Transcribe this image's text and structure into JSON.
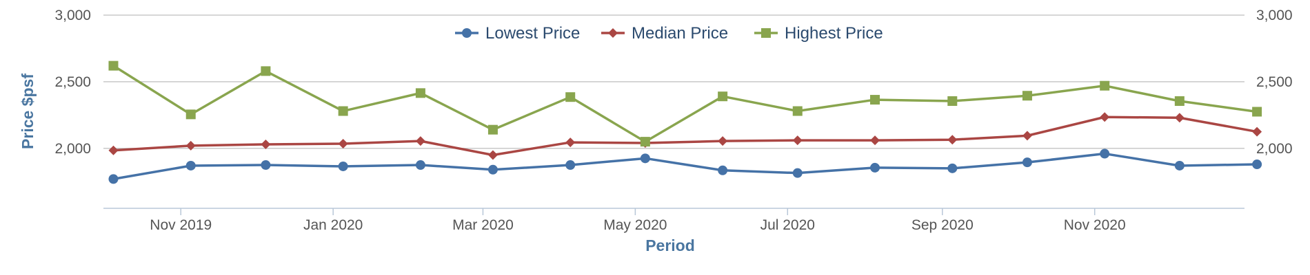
{
  "chart_data": {
    "type": "line",
    "title": "",
    "xlabel": "Period",
    "ylabel": "Price $psf",
    "ylim": [
      1550,
      3000
    ],
    "yticks": [
      2000,
      2500,
      3000
    ],
    "ytick_labels": [
      "2,000",
      "2,500",
      "3,000"
    ],
    "xlim": [
      "2019-10-01",
      "2020-12-31"
    ],
    "xticks": [
      "2019-11-01",
      "2020-01-01",
      "2020-03-01",
      "2020-05-01",
      "2020-07-01",
      "2020-09-01",
      "2020-11-01"
    ],
    "xtick_labels": [
      "Nov 2019",
      "Jan 2020",
      "Mar 2020",
      "May 2020",
      "Jul 2020",
      "Sep 2020",
      "Nov 2020"
    ],
    "x": [
      "2019-10-05",
      "2019-11-05",
      "2019-12-05",
      "2020-01-05",
      "2020-02-05",
      "2020-03-05",
      "2020-04-05",
      "2020-05-05",
      "2020-06-05",
      "2020-07-05",
      "2020-08-05",
      "2020-09-05",
      "2020-10-05",
      "2020-11-05",
      "2020-12-05",
      "2021-01-05"
    ],
    "series": [
      {
        "name": "Lowest Price",
        "color": "#4572a7",
        "marker": "circle",
        "values": [
          1770,
          1870,
          1875,
          1865,
          1875,
          1840,
          1875,
          1925,
          1835,
          1815,
          1855,
          1850,
          1895,
          1960,
          1870,
          1880
        ]
      },
      {
        "name": "Median Price",
        "color": "#aa4643",
        "marker": "diamond",
        "values": [
          1985,
          2020,
          2030,
          2035,
          2055,
          1950,
          2045,
          2040,
          2055,
          2060,
          2060,
          2065,
          2095,
          2235,
          2230,
          2125
        ]
      },
      {
        "name": "Highest Price",
        "color": "#89a54e",
        "marker": "square",
        "values": [
          2620,
          2255,
          2580,
          2280,
          2415,
          2140,
          2385,
          2050,
          2390,
          2280,
          2365,
          2355,
          2395,
          2470,
          2355,
          2275
        ]
      }
    ],
    "grid": true,
    "legend_position": "top-center"
  }
}
